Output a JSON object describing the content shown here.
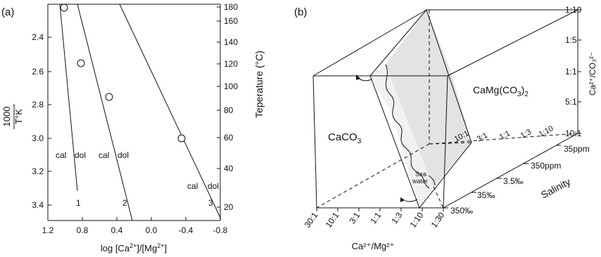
{
  "panel_a": {
    "label": "(a)",
    "y_left_label_top": "1000",
    "y_left_label_bottom": "T°K",
    "y_right_label": "Teperature (°C)",
    "x_label_main": "log [Ca",
    "x_sup1": "2+",
    "x_mid": "]/[Mg",
    "x_sup2": "2+",
    "x_end": "]",
    "x_ticks": [
      "1.2",
      "0.8",
      "0.4",
      "0.0",
      "-0.4",
      "-0.8"
    ],
    "y_left_ticks": [
      "2.4",
      "2.6",
      "2.8",
      "3.0",
      "3.2",
      "3.4"
    ],
    "y_right_ticks": [
      "180",
      "160",
      "140",
      "120",
      "100",
      "80",
      "60",
      "40",
      "20"
    ],
    "line_labels": [
      "1",
      "2",
      "3"
    ],
    "region_labels": [
      {
        "cal": "cal",
        "dol": "dol"
      },
      {
        "cal": "cal",
        "dol": "dol"
      },
      {
        "cal": "cal",
        "dol": "dol"
      }
    ]
  },
  "panel_b": {
    "label": "(b)",
    "caco3": "CaCO",
    "caco3_sub": "3",
    "camg": "CaMg(CO",
    "camg_sub": "3",
    "camg_end": ")",
    "camg_sub2": "2",
    "seawater_line1": "Sea",
    "seawater_line2": "water",
    "right_axis_ticks": [
      "1:10",
      "1:5",
      "1:1",
      "5:1",
      "10:1"
    ],
    "right_axis_label": "Ca²⁺/CO₃²⁻",
    "bottom_ticks": [
      "30:1",
      "10:1",
      "3:1",
      "1:1",
      "1:3",
      "1:10",
      "1:30"
    ],
    "bottom_label": "Ca²⁺/Mg²⁺",
    "inner_ticks": [
      "10:1",
      "3:1",
      "1:1",
      "1:3",
      "1:10"
    ],
    "salinity_ticks": [
      "35ppm",
      "350ppm",
      "3.5‰",
      "35‰",
      "350‰"
    ],
    "salinity_label": "Salinity"
  }
}
